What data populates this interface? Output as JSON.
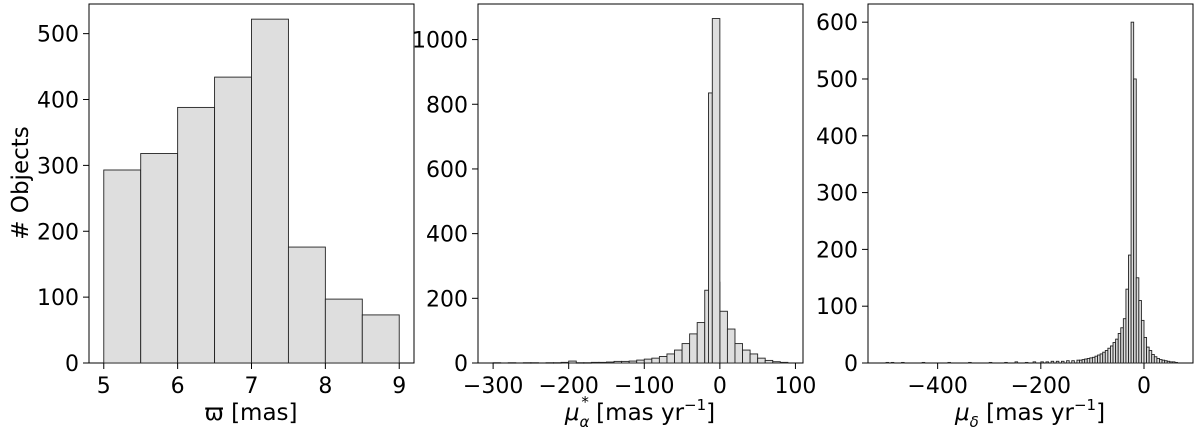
{
  "chart_data": [
    {
      "type": "bar",
      "xlabel": "ϖ [mas]",
      "ylabel": "# Objects",
      "xlim": [
        4.8,
        9.2
      ],
      "ylim": [
        0,
        545
      ],
      "xticks": [
        5,
        6,
        7,
        8,
        9
      ],
      "yticks": [
        0,
        100,
        200,
        300,
        400,
        500
      ],
      "bin_edges": [
        5.0,
        5.5,
        6.0,
        6.5,
        7.0,
        7.5,
        8.0,
        8.5,
        9.0
      ],
      "values": [
        293,
        318,
        388,
        434,
        522,
        176,
        97,
        73
      ]
    },
    {
      "type": "bar",
      "xlabel_main": "μ",
      "xlabel_sub": "α",
      "xlabel_sup": "*",
      "xlabel_rest": " [mas yr",
      "xlabel_exp": "−1",
      "xlabel_close": "]",
      "xlim": [
        -320,
        110
      ],
      "ylim": [
        0,
        1110
      ],
      "xticks": [
        -300,
        -200,
        -100,
        0,
        100
      ],
      "xticklabels": [
        "−300",
        "−200",
        "−100",
        "0",
        "100"
      ],
      "yticks": [
        0,
        200,
        400,
        600,
        800,
        1000
      ],
      "bin_width": 10,
      "bins": [
        {
          "x0": -300,
          "v": 1
        },
        {
          "x0": -290,
          "v": 0
        },
        {
          "x0": -280,
          "v": 1
        },
        {
          "x0": -270,
          "v": 0
        },
        {
          "x0": -260,
          "v": 1
        },
        {
          "x0": -250,
          "v": 1
        },
        {
          "x0": -240,
          "v": 0
        },
        {
          "x0": -230,
          "v": 1
        },
        {
          "x0": -220,
          "v": 1
        },
        {
          "x0": -210,
          "v": 2
        },
        {
          "x0": -200,
          "v": 6
        },
        {
          "x0": -190,
          "v": 1
        },
        {
          "x0": -180,
          "v": 1
        },
        {
          "x0": -170,
          "v": 2
        },
        {
          "x0": -160,
          "v": 2
        },
        {
          "x0": -150,
          "v": 3
        },
        {
          "x0": -140,
          "v": 5
        },
        {
          "x0": -130,
          "v": 5
        },
        {
          "x0": -120,
          "v": 6
        },
        {
          "x0": -110,
          "v": 9
        },
        {
          "x0": -100,
          "v": 12
        },
        {
          "x0": -90,
          "v": 15
        },
        {
          "x0": -80,
          "v": 20
        },
        {
          "x0": -70,
          "v": 28
        },
        {
          "x0": -60,
          "v": 40
        },
        {
          "x0": -50,
          "v": 60
        },
        {
          "x0": -40,
          "v": 90
        },
        {
          "x0": -30,
          "v": 125
        },
        {
          "x0": -20,
          "v": 225
        },
        {
          "x0": -10,
          "v": 250
        },
        {
          "x0": -5,
          "v": 0
        },
        {
          "x0": 0,
          "v": 160
        },
        {
          "x0": 10,
          "v": 105
        },
        {
          "x0": 20,
          "v": 60
        },
        {
          "x0": 30,
          "v": 40
        },
        {
          "x0": 40,
          "v": 28
        },
        {
          "x0": 50,
          "v": 15
        },
        {
          "x0": 60,
          "v": 8
        },
        {
          "x0": 70,
          "v": 4
        },
        {
          "x0": 80,
          "v": 2
        }
      ],
      "spikes": [
        {
          "x0": -15,
          "x1": -10,
          "v": 835
        },
        {
          "x0": -10,
          "x1": 0,
          "v": 1065
        }
      ]
    },
    {
      "type": "bar",
      "xlabel_main": "μ",
      "xlabel_sub": "δ",
      "xlabel_rest": " [mas yr",
      "xlabel_exp": "−1",
      "xlabel_close": "]",
      "xlim": [
        -535,
        95
      ],
      "ylim": [
        0,
        632
      ],
      "xticks": [
        -400,
        -200,
        0
      ],
      "xticklabels": [
        "−400",
        "−200",
        "0"
      ],
      "yticks": [
        0,
        100,
        200,
        300,
        400,
        500,
        600
      ],
      "bin_width": 5,
      "bins": [
        {
          "x0": -500,
          "v": 1
        },
        {
          "x0": -490,
          "v": 1
        },
        {
          "x0": -470,
          "v": 1
        },
        {
          "x0": -430,
          "v": 1
        },
        {
          "x0": -380,
          "v": 1
        },
        {
          "x0": -340,
          "v": 1
        },
        {
          "x0": -300,
          "v": 1
        },
        {
          "x0": -270,
          "v": 1
        },
        {
          "x0": -250,
          "v": 2
        },
        {
          "x0": -230,
          "v": 1
        },
        {
          "x0": -215,
          "v": 2
        },
        {
          "x0": -200,
          "v": 2
        },
        {
          "x0": -190,
          "v": 2
        },
        {
          "x0": -180,
          "v": 3
        },
        {
          "x0": -170,
          "v": 3
        },
        {
          "x0": -160,
          "v": 3
        },
        {
          "x0": -150,
          "v": 4
        },
        {
          "x0": -140,
          "v": 4
        },
        {
          "x0": -130,
          "v": 5
        },
        {
          "x0": -125,
          "v": 5
        },
        {
          "x0": -120,
          "v": 6
        },
        {
          "x0": -115,
          "v": 7
        },
        {
          "x0": -110,
          "v": 8
        },
        {
          "x0": -105,
          "v": 9
        },
        {
          "x0": -100,
          "v": 10
        },
        {
          "x0": -95,
          "v": 12
        },
        {
          "x0": -90,
          "v": 14
        },
        {
          "x0": -85,
          "v": 16
        },
        {
          "x0": -80,
          "v": 19
        },
        {
          "x0": -75,
          "v": 22
        },
        {
          "x0": -70,
          "v": 26
        },
        {
          "x0": -65,
          "v": 30
        },
        {
          "x0": -60,
          "v": 36
        },
        {
          "x0": -55,
          "v": 42
        },
        {
          "x0": -50,
          "v": 52
        },
        {
          "x0": -45,
          "v": 62
        },
        {
          "x0": -40,
          "v": 78
        },
        {
          "x0": -35,
          "v": 130
        },
        {
          "x0": -30,
          "v": 190
        },
        {
          "x0": -25,
          "v": 600
        },
        {
          "x0": -20,
          "v": 500
        },
        {
          "x0": -15,
          "v": 150
        },
        {
          "x0": -10,
          "v": 110
        },
        {
          "x0": -5,
          "v": 75
        },
        {
          "x0": 0,
          "v": 45
        },
        {
          "x0": 5,
          "v": 28
        },
        {
          "x0": 10,
          "v": 22
        },
        {
          "x0": 15,
          "v": 15
        },
        {
          "x0": 20,
          "v": 11
        },
        {
          "x0": 25,
          "v": 8
        },
        {
          "x0": 30,
          "v": 6
        },
        {
          "x0": 35,
          "v": 5
        },
        {
          "x0": 40,
          "v": 4
        },
        {
          "x0": 45,
          "v": 3
        },
        {
          "x0": 50,
          "v": 2
        },
        {
          "x0": 55,
          "v": 2
        },
        {
          "x0": 60,
          "v": 1
        }
      ]
    }
  ]
}
